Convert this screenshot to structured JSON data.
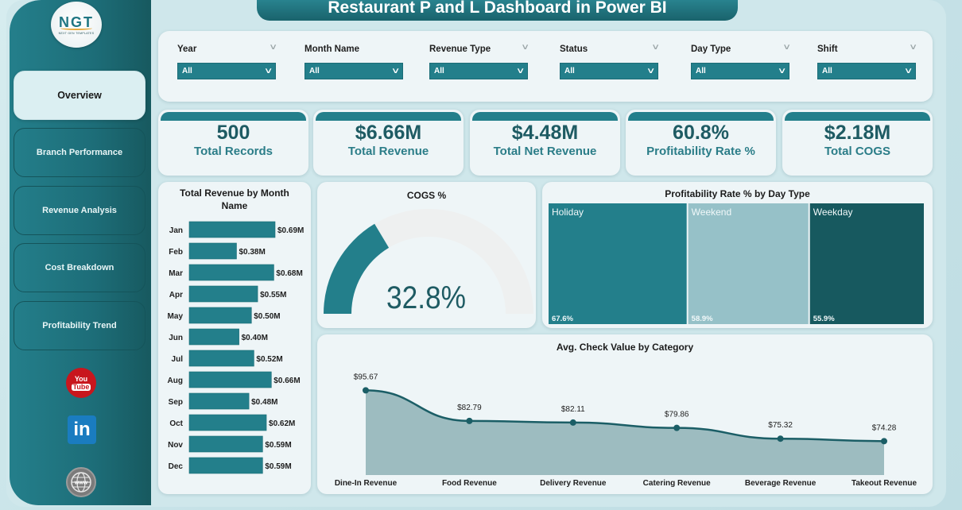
{
  "header": {
    "title": "Restaurant P and L Dashboard in Power BI"
  },
  "logo": {
    "text": "NGT",
    "subtitle": "NEXT GEN TEMPLATES"
  },
  "sidebar": {
    "items": [
      {
        "label": "Overview",
        "active": true
      },
      {
        "label": "Branch Performance",
        "active": false
      },
      {
        "label": "Revenue Analysis",
        "active": false
      },
      {
        "label": "Cost Breakdown",
        "active": false
      },
      {
        "label": "Profitability Trend",
        "active": false
      }
    ],
    "social": [
      {
        "name": "youtube-icon",
        "text_top": "You",
        "text_bottom": "Tube"
      },
      {
        "name": "linkedin-icon",
        "text": "in"
      },
      {
        "name": "website-icon",
        "text": "www"
      }
    ]
  },
  "filters": [
    {
      "label": "Year",
      "value": "All"
    },
    {
      "label": "Month Name",
      "value": "All"
    },
    {
      "label": "Revenue Type",
      "value": "All"
    },
    {
      "label": "Status",
      "value": "All"
    },
    {
      "label": "Day Type",
      "value": "All"
    },
    {
      "label": "Shift",
      "value": "All"
    }
  ],
  "kpis": [
    {
      "value": "500",
      "label": "Total Records"
    },
    {
      "value": "$6.66M",
      "label": "Total Revenue"
    },
    {
      "value": "$4.48M",
      "label": "Total Net Revenue"
    },
    {
      "value": "60.8%",
      "label": "Profitability Rate %"
    },
    {
      "value": "$2.18M",
      "label": "Total COGS"
    }
  ],
  "colors": {
    "teal": "#237f8b",
    "teal_dark": "#17595f",
    "teal_light": "#96c1c8",
    "area_fill": "#9dbcc0",
    "line": "#1b5e66"
  },
  "chart_data": [
    {
      "type": "bar",
      "orientation": "horizontal",
      "title": "Total Revenue by Month Name",
      "categories": [
        "Jan",
        "Feb",
        "Mar",
        "Apr",
        "May",
        "Jun",
        "Jul",
        "Aug",
        "Sep",
        "Oct",
        "Nov",
        "Dec"
      ],
      "values": [
        0.69,
        0.38,
        0.68,
        0.55,
        0.5,
        0.4,
        0.52,
        0.66,
        0.48,
        0.62,
        0.59,
        0.59
      ],
      "labels": [
        "$0.69M",
        "$0.38M",
        "$0.68M",
        "$0.55M",
        "$0.50M",
        "$0.40M",
        "$0.52M",
        "$0.66M",
        "$0.48M",
        "$0.62M",
        "$0.59M",
        "$0.59M"
      ],
      "unit": "$M"
    },
    {
      "type": "gauge",
      "title": "COGS %",
      "value": 32.8,
      "max": 100,
      "label": "32.8%"
    },
    {
      "type": "treemap",
      "title": "Profitability Rate % by Day Type",
      "categories": [
        "Holiday",
        "Weekend",
        "Weekday"
      ],
      "values": [
        67.6,
        58.9,
        55.9
      ],
      "labels": [
        "67.6%",
        "58.9%",
        "55.9%"
      ],
      "colors": [
        "#237f8b",
        "#96c1c8",
        "#17595f"
      ]
    },
    {
      "type": "area",
      "title": "Avg. Check Value by Category",
      "categories": [
        "Dine-In Revenue",
        "Food Revenue",
        "Delivery Revenue",
        "Catering Revenue",
        "Beverage Revenue",
        "Takeout Revenue"
      ],
      "values": [
        95.67,
        82.79,
        82.11,
        79.86,
        75.32,
        74.28
      ],
      "labels": [
        "$95.67",
        "$82.79",
        "$82.11",
        "$79.86",
        "$75.32",
        "$74.28"
      ],
      "ylim": [
        60,
        100
      ]
    }
  ]
}
